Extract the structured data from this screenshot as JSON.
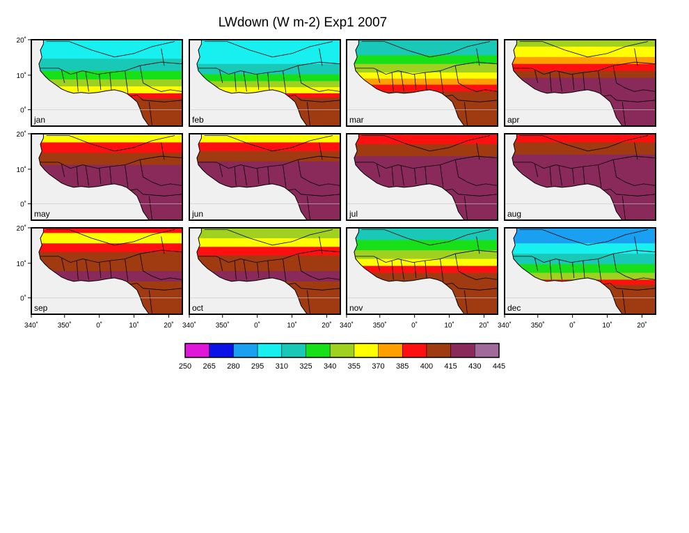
{
  "figure": {
    "title": "LWdown (W m-2) Exp1 2007"
  },
  "axes": {
    "y_tick_labels": [
      "20˚",
      "10˚",
      "0˚"
    ],
    "x_tick_labels": [
      "340˚",
      "350˚",
      "0˚",
      "10˚",
      "20˚"
    ]
  },
  "panels": [
    {
      "month": "jan"
    },
    {
      "month": "feb"
    },
    {
      "month": "mar"
    },
    {
      "month": "apr"
    },
    {
      "month": "may"
    },
    {
      "month": "jun"
    },
    {
      "month": "jul"
    },
    {
      "month": "aug"
    },
    {
      "month": "sep"
    },
    {
      "month": "oct"
    },
    {
      "month": "nov"
    },
    {
      "month": "dec"
    }
  ],
  "colorbar": {
    "labels": [
      "250",
      "265",
      "280",
      "295",
      "310",
      "325",
      "340",
      "355",
      "370",
      "385",
      "400",
      "415",
      "430",
      "445"
    ],
    "colors": [
      "#e016d8",
      "#0a12e8",
      "#1aa0f0",
      "#18f0f0",
      "#1ac8b8",
      "#18e018",
      "#a0d020",
      "#ffff00",
      "#ffa000",
      "#ff1010",
      "#a03a10",
      "#8a2a5a",
      "#a06a9a"
    ]
  },
  "colors": {
    "ocean": "#f0f0f0",
    "border": "#000000"
  }
}
